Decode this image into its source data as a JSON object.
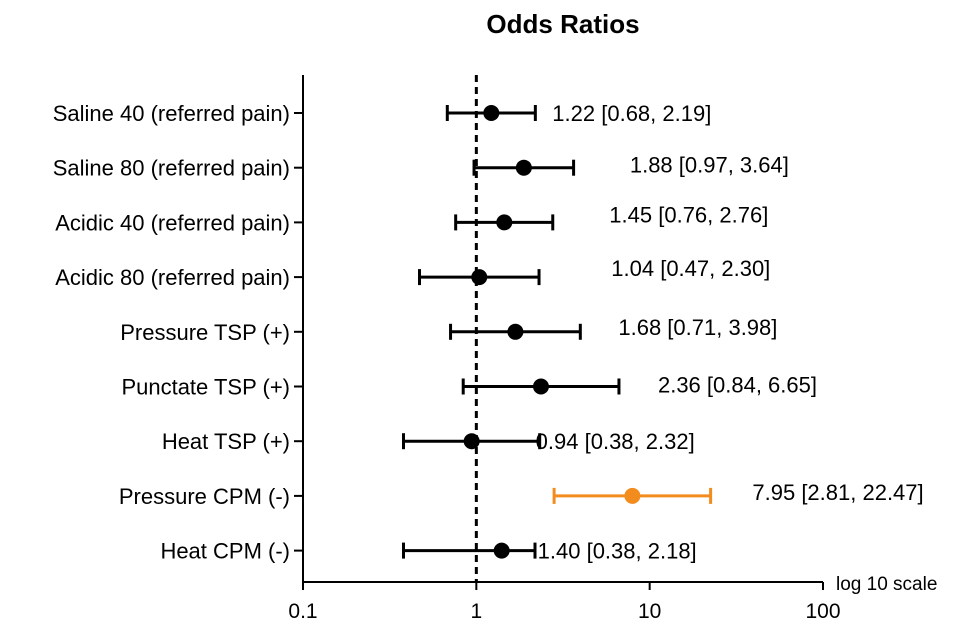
{
  "chart_data": {
    "type": "forest",
    "title": "Odds Ratios",
    "xscale": "log",
    "xlim": [
      0.1,
      100
    ],
    "xticks": [
      "0.1",
      "1",
      "10",
      "100"
    ],
    "xlabel": "log 10 scale",
    "reference_line": 1,
    "grid": false,
    "colors": {
      "default": "#000000",
      "highlight": "#f28c1e"
    },
    "rows": [
      {
        "category": "Saline 40 (referred pain)",
        "or": 1.22,
        "lo": 0.68,
        "hi": 2.19,
        "label": "1.22 [0.68, 2.19]",
        "highlight": false
      },
      {
        "category": "Saline 80 (referred pain)",
        "or": 1.88,
        "lo": 0.97,
        "hi": 3.64,
        "label": "1.88 [0.97, 3.64]",
        "highlight": false
      },
      {
        "category": "Acidic 40 (referred pain)",
        "or": 1.45,
        "lo": 0.76,
        "hi": 2.76,
        "label": "1.45 [0.76, 2.76]",
        "highlight": false
      },
      {
        "category": "Acidic 80 (referred pain)",
        "or": 1.04,
        "lo": 0.47,
        "hi": 2.3,
        "label": "1.04 [0.47, 2.30]",
        "highlight": false
      },
      {
        "category": "Pressure TSP (+)",
        "or": 1.68,
        "lo": 0.71,
        "hi": 3.98,
        "label": "1.68 [0.71, 3.98]",
        "highlight": false
      },
      {
        "category": "Punctate TSP (+)",
        "or": 2.36,
        "lo": 0.84,
        "hi": 6.65,
        "label": "2.36 [0.84, 6.65]",
        "highlight": false
      },
      {
        "category": "Heat TSP (+)",
        "or": 0.94,
        "lo": 0.38,
        "hi": 2.32,
        "label": "0.94 [0.38, 2.32]",
        "highlight": false
      },
      {
        "category": "Pressure CPM (-)",
        "or": 7.95,
        "lo": 2.81,
        "hi": 22.47,
        "label": "7.95 [2.81, 22.47]",
        "highlight": true
      },
      {
        "category": "Heat CPM (-)",
        "or": 1.4,
        "lo": 0.38,
        "hi": 2.18,
        "label": "1.40 [0.38, 2.18]",
        "highlight": false
      }
    ]
  }
}
